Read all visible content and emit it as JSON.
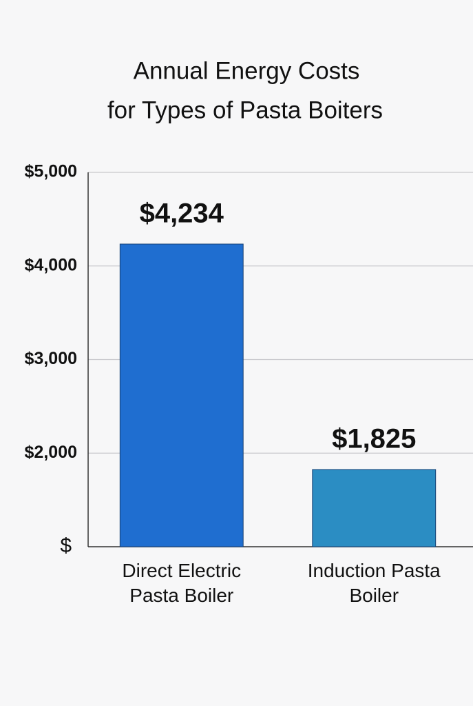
{
  "chart_data": {
    "type": "bar",
    "title": [
      "Annual Energy Costs",
      "for Types of Pasta Boiters"
    ],
    "categories": [
      "Direct Electric Pasta Boiler",
      "Induction Pasta Boiler"
    ],
    "values": [
      4234,
      1825
    ],
    "value_labels": [
      "$4,234",
      "$1,825"
    ],
    "colors": [
      "#1f6ed0",
      "#2b8dc3"
    ],
    "ylim": [
      1000,
      5000
    ],
    "yticks": [
      {
        "value": 1000,
        "label": "$"
      },
      {
        "value": 2000,
        "label": "$2,000"
      },
      {
        "value": 3000,
        "label": "$3,000"
      },
      {
        "value": 4000,
        "label": "$4,000"
      },
      {
        "value": 5000,
        "label": "$5,000"
      }
    ],
    "grid": true
  }
}
